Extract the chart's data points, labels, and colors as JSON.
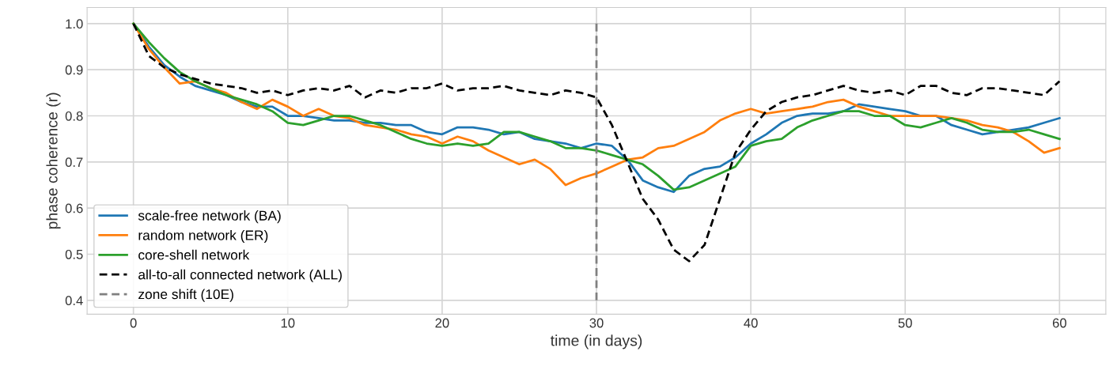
{
  "chart_data": {
    "type": "line",
    "xlabel": "time (in days)",
    "ylabel": "phase coherence (r)",
    "x": [
      0,
      1,
      2,
      3,
      4,
      5,
      6,
      7,
      8,
      9,
      10,
      11,
      12,
      13,
      14,
      15,
      16,
      17,
      18,
      19,
      20,
      21,
      22,
      23,
      24,
      25,
      26,
      27,
      28,
      29,
      30,
      31,
      32,
      33,
      34,
      35,
      36,
      37,
      38,
      39,
      40,
      41,
      42,
      43,
      44,
      45,
      46,
      47,
      48,
      49,
      50,
      51,
      52,
      53,
      54,
      55,
      56,
      57,
      58,
      59,
      60
    ],
    "xlim": [
      -3,
      63
    ],
    "xticks": [
      0,
      10,
      20,
      30,
      40,
      50,
      60
    ],
    "ylim": [
      0.37,
      1.035
    ],
    "yticks": [
      {
        "value": 0.4,
        "label": "0.4"
      },
      {
        "value": 0.5,
        "label": "0.5"
      },
      {
        "value": 0.6,
        "label": "0.6"
      },
      {
        "value": 0.7,
        "label": "0.7"
      },
      {
        "value": 0.8,
        "label": "0.8"
      },
      {
        "value": 0.9,
        "label": "0.9"
      },
      {
        "value": 1,
        "label": "1.0"
      }
    ],
    "grid": true,
    "legend": "bottom left",
    "series": [
      {
        "name": "scale-free network (BA)",
        "color": "#1f77b4",
        "values": [
          1.0,
          0.95,
          0.91,
          0.885,
          0.865,
          0.855,
          0.845,
          0.83,
          0.82,
          0.82,
          0.8,
          0.8,
          0.795,
          0.79,
          0.79,
          0.785,
          0.785,
          0.78,
          0.78,
          0.765,
          0.76,
          0.775,
          0.775,
          0.77,
          0.76,
          0.765,
          0.75,
          0.745,
          0.74,
          0.73,
          0.74,
          0.735,
          0.705,
          0.66,
          0.645,
          0.635,
          0.67,
          0.685,
          0.69,
          0.71,
          0.74,
          0.76,
          0.785,
          0.8,
          0.805,
          0.805,
          0.81,
          0.825,
          0.82,
          0.815,
          0.81,
          0.8,
          0.8,
          0.78,
          0.77,
          0.76,
          0.765,
          0.77,
          0.775,
          0.785,
          0.795
        ]
      },
      {
        "name": "random network (ER)",
        "color": "#ff7f0e",
        "values": [
          1.0,
          0.945,
          0.905,
          0.87,
          0.875,
          0.86,
          0.85,
          0.83,
          0.815,
          0.835,
          0.82,
          0.8,
          0.815,
          0.8,
          0.795,
          0.78,
          0.775,
          0.77,
          0.76,
          0.755,
          0.74,
          0.755,
          0.745,
          0.725,
          0.71,
          0.695,
          0.705,
          0.685,
          0.65,
          0.665,
          0.675,
          0.69,
          0.705,
          0.71,
          0.73,
          0.735,
          0.75,
          0.765,
          0.79,
          0.805,
          0.815,
          0.805,
          0.81,
          0.815,
          0.82,
          0.83,
          0.835,
          0.82,
          0.81,
          0.8,
          0.8,
          0.8,
          0.8,
          0.795,
          0.79,
          0.78,
          0.775,
          0.765,
          0.745,
          0.72,
          0.73
        ]
      },
      {
        "name": "core-shell network",
        "color": "#2ca02c",
        "values": [
          1.0,
          0.96,
          0.925,
          0.895,
          0.875,
          0.86,
          0.845,
          0.835,
          0.825,
          0.81,
          0.785,
          0.78,
          0.79,
          0.8,
          0.8,
          0.79,
          0.78,
          0.765,
          0.75,
          0.74,
          0.735,
          0.74,
          0.735,
          0.74,
          0.765,
          0.765,
          0.755,
          0.745,
          0.73,
          0.73,
          0.725,
          0.715,
          0.705,
          0.695,
          0.67,
          0.64,
          0.645,
          0.66,
          0.675,
          0.69,
          0.735,
          0.745,
          0.75,
          0.775,
          0.79,
          0.8,
          0.81,
          0.81,
          0.8,
          0.8,
          0.78,
          0.775,
          0.785,
          0.795,
          0.785,
          0.77,
          0.765,
          0.765,
          0.77,
          0.76,
          0.75
        ]
      },
      {
        "name": "all-to-all connected network (ALL)",
        "color": "#000000",
        "line_style": "dashed",
        "values": [
          1.0,
          0.93,
          0.905,
          0.89,
          0.88,
          0.87,
          0.865,
          0.86,
          0.85,
          0.855,
          0.845,
          0.855,
          0.86,
          0.855,
          0.865,
          0.84,
          0.855,
          0.85,
          0.86,
          0.86,
          0.87,
          0.855,
          0.86,
          0.86,
          0.865,
          0.855,
          0.85,
          0.845,
          0.855,
          0.85,
          0.84,
          0.78,
          0.7,
          0.62,
          0.575,
          0.51,
          0.485,
          0.52,
          0.62,
          0.72,
          0.77,
          0.81,
          0.83,
          0.84,
          0.845,
          0.855,
          0.865,
          0.855,
          0.85,
          0.855,
          0.845,
          0.865,
          0.865,
          0.85,
          0.845,
          0.86,
          0.86,
          0.855,
          0.85,
          0.845,
          0.875
        ]
      },
      {
        "name": "zone shift (10E)",
        "color": "#808080",
        "line_style": "dashed",
        "x": [
          30,
          30
        ],
        "values": [
          0.4,
          1.0
        ]
      }
    ]
  }
}
